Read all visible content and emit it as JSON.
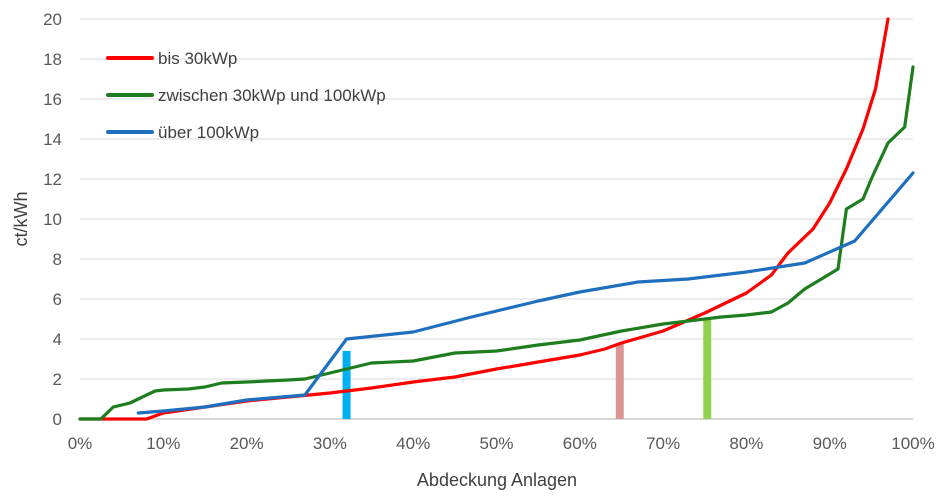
{
  "chart_data": {
    "type": "line",
    "xlabel": "Abdeckung Anlagen",
    "ylabel": "ct/kWh",
    "xlim": [
      0,
      100
    ],
    "ylim": [
      0,
      20
    ],
    "x_ticks": [
      "0%",
      "10%",
      "20%",
      "30%",
      "40%",
      "50%",
      "60%",
      "70%",
      "80%",
      "90%",
      "100%"
    ],
    "y_ticks": [
      "0",
      "2",
      "4",
      "6",
      "8",
      "10",
      "12",
      "14",
      "16",
      "18",
      "20"
    ],
    "grid": "horizontal",
    "legend_position": "top-left",
    "series": [
      {
        "name": "bis 30kWp",
        "color": "#ff0000",
        "x": [
          0,
          8,
          10,
          15,
          20,
          25,
          30,
          35,
          40,
          45,
          50,
          55,
          60,
          63,
          65,
          70,
          75,
          80,
          83,
          85,
          88,
          90,
          92,
          94,
          95.5,
          96.5,
          97
        ],
        "y": [
          0,
          0,
          0.3,
          0.6,
          0.9,
          1.1,
          1.3,
          1.55,
          1.85,
          2.1,
          2.5,
          2.85,
          3.2,
          3.5,
          3.8,
          4.4,
          5.3,
          6.3,
          7.2,
          8.3,
          9.5,
          10.8,
          12.5,
          14.5,
          16.5,
          18.8,
          20
        ]
      },
      {
        "name": "zwischen 30kWp und 100kWp",
        "color": "#1e7d1e",
        "x": [
          0,
          2.5,
          4,
          6,
          8,
          9,
          10,
          13,
          15,
          17,
          20,
          25,
          27,
          30,
          35,
          40,
          45,
          50,
          55,
          60,
          65,
          70,
          73,
          75,
          77,
          80,
          83,
          85,
          87,
          89,
          91,
          92,
          94,
          95,
          97,
          99,
          100
        ],
        "y": [
          0,
          0,
          0.6,
          0.8,
          1.2,
          1.4,
          1.45,
          1.5,
          1.6,
          1.8,
          1.85,
          1.95,
          2.0,
          2.3,
          2.8,
          2.9,
          3.3,
          3.4,
          3.7,
          3.95,
          4.4,
          4.75,
          4.9,
          5.0,
          5.1,
          5.2,
          5.35,
          5.8,
          6.5,
          7.0,
          7.5,
          10.5,
          11.0,
          12.0,
          13.8,
          14.6,
          17.6
        ]
      },
      {
        "name": "über 100kWp",
        "color": "#1f6fbf",
        "x": [
          7,
          10,
          15,
          20,
          27,
          32,
          40,
          47,
          55,
          60,
          67,
          73,
          80,
          87,
          93,
          100
        ],
        "y": [
          0.3,
          0.4,
          0.6,
          0.95,
          1.2,
          4.0,
          4.35,
          5.1,
          5.9,
          6.35,
          6.85,
          7.0,
          7.35,
          7.8,
          8.9,
          12.3
        ]
      }
    ],
    "markers": [
      {
        "x": 32,
        "y": 3.4,
        "color": "#00b0f0"
      },
      {
        "x": 64.8,
        "y": 3.8,
        "color": "#d99694"
      },
      {
        "x": 75.3,
        "y": 5.0,
        "color": "#92d050"
      }
    ]
  }
}
